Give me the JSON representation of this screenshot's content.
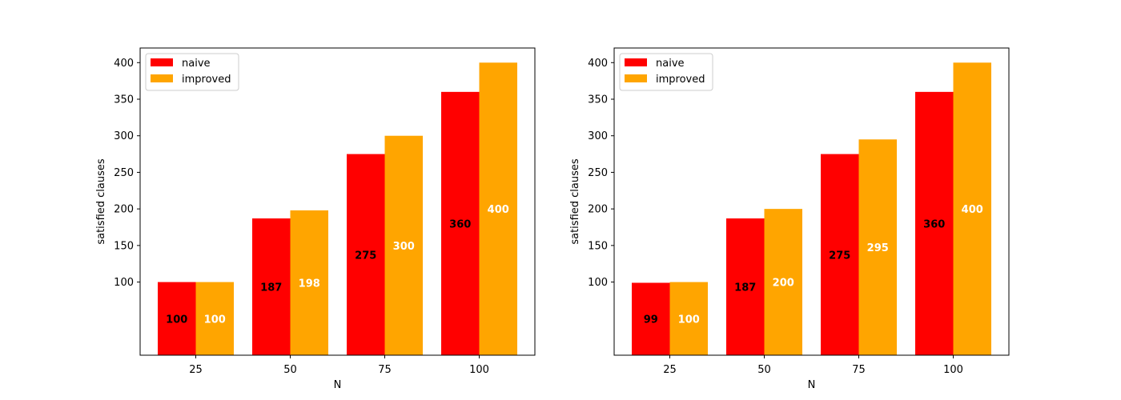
{
  "chart_data": [
    {
      "type": "bar",
      "categories": [
        "25",
        "50",
        "75",
        "100"
      ],
      "xlabel": "N",
      "ylabel": "satisfied clauses",
      "ylim": [
        0,
        420
      ],
      "yticks": [
        100,
        150,
        200,
        250,
        300,
        350,
        400
      ],
      "legend": "top-left",
      "series": [
        {
          "name": "naive",
          "color": "#ff0000",
          "label_color": "#000000",
          "values": [
            100,
            187,
            275,
            360
          ],
          "labels": [
            "100",
            "187",
            "275",
            "360"
          ]
        },
        {
          "name": "improved",
          "color": "#ffa500",
          "label_color": "#ffffff",
          "values": [
            100,
            198,
            300,
            400
          ],
          "labels": [
            "100",
            "198",
            "300",
            "400"
          ]
        }
      ]
    },
    {
      "type": "bar",
      "categories": [
        "25",
        "50",
        "75",
        "100"
      ],
      "xlabel": "N",
      "ylabel": "satisfied clauses",
      "ylim": [
        0,
        420
      ],
      "yticks": [
        100,
        150,
        200,
        250,
        300,
        350,
        400
      ],
      "legend": "top-left",
      "series": [
        {
          "name": "naive",
          "color": "#ff0000",
          "label_color": "#000000",
          "values": [
            99,
            187,
            275,
            360
          ],
          "labels": [
            "99",
            "187",
            "275",
            "360"
          ]
        },
        {
          "name": "improved",
          "color": "#ffa500",
          "label_color": "#ffffff",
          "values": [
            100,
            200,
            295,
            400
          ],
          "labels": [
            "100",
            "200",
            "295",
            "400"
          ]
        }
      ]
    }
  ]
}
